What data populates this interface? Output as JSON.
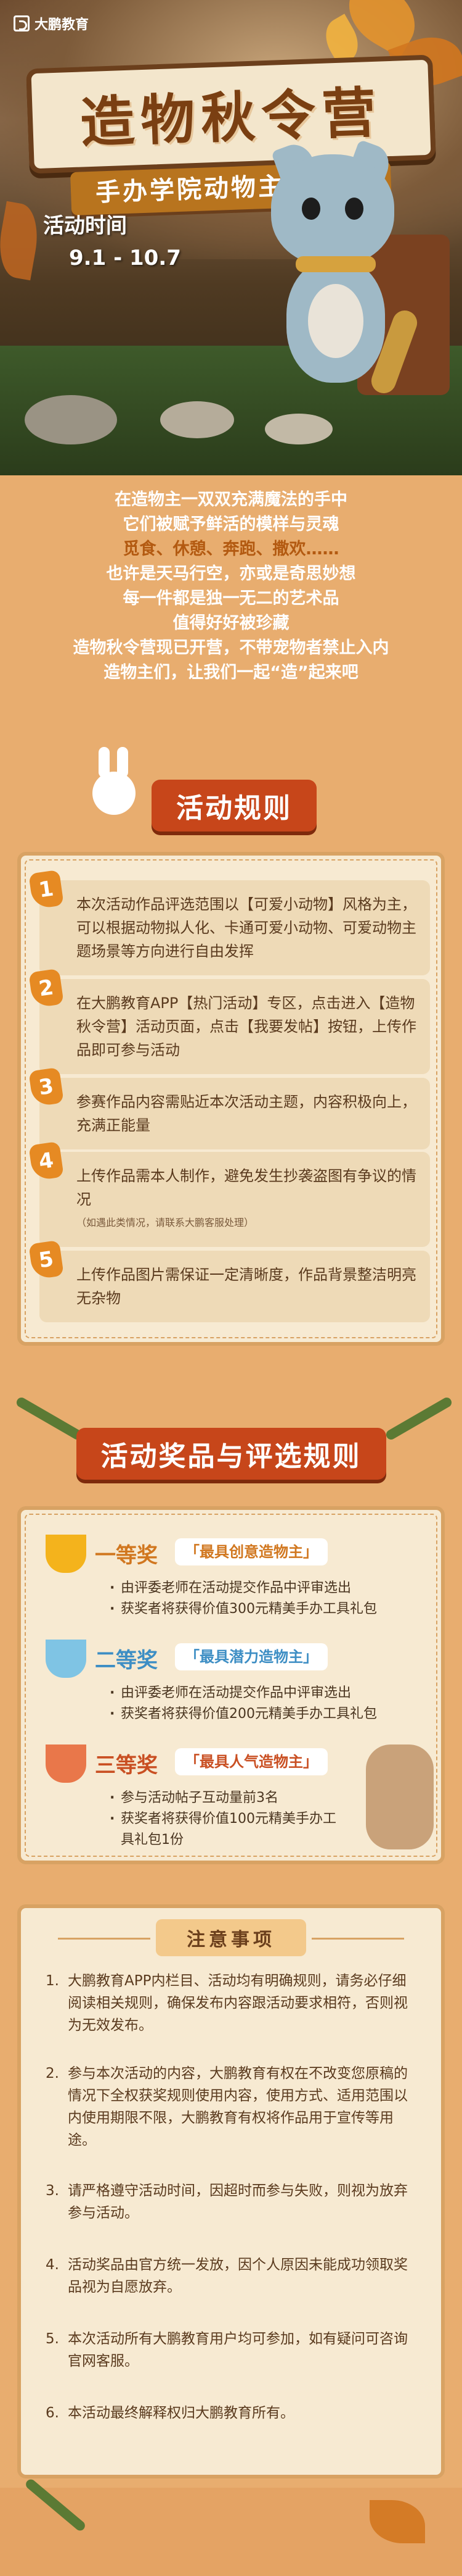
{
  "brand": {
    "logo_text": "大鹏教育"
  },
  "hero": {
    "title": "造物秋令营",
    "subtitle": "手办学院动物主题活动",
    "time_label": "活动时间",
    "time_value": "9.1 - 10.7"
  },
  "intro": {
    "lines": [
      "在造物主一双双充满魔法的手中",
      "它们被赋予鲜活的模样与灵魂",
      "觅食、休憩、奔跑、撒欢……",
      "也许是天马行空，亦或是奇思妙想",
      "每一件都是独一无二的艺术品",
      "值得好好被珍藏",
      "造物秋令营现已开营，不带宠物者禁止入内",
      "造物主们，让我们一起“造”起来吧"
    ]
  },
  "rules": {
    "header": "活动规则",
    "items": [
      {
        "num": "1",
        "text": "本次活动作品评选范围以【可爱小动物】风格为主，可以根据动物拟人化、卡通可爱小动物、可爱动物主题场景等方向进行自由发挥"
      },
      {
        "num": "2",
        "text": "在大鹏教育APP【热门活动】专区，点击进入【造物秋令营】活动页面，点击【我要发帖】按钮，上传作品即可参与活动"
      },
      {
        "num": "3",
        "text": "参赛作品内容需贴近本次活动主题，内容积极向上，充满正能量"
      },
      {
        "num": "4",
        "text": "上传作品需本人制作，避免发生抄袭盗图有争议的情况",
        "note": "（如遇此类情况，请联系大鹏客服处理）"
      },
      {
        "num": "5",
        "text": "上传作品图片需保证一定清晰度，作品背景整洁明亮无杂物"
      }
    ]
  },
  "prizes": {
    "header": "活动奖品与评选规则",
    "items": [
      {
        "rank": "一等奖",
        "tag": "「最具创意造物主」",
        "lines": [
          "由评委老师在活动提交作品中评审选出",
          "获奖者将获得价值300元精美手办工具礼包"
        ]
      },
      {
        "rank": "二等奖",
        "tag": "「最具潜力造物主」",
        "lines": [
          "由评委老师在活动提交作品中评审选出",
          "获奖者将获得价值200元精美手办工具礼包"
        ]
      },
      {
        "rank": "三等奖",
        "tag": "「最具人气造物主」",
        "lines": [
          "参与活动帖子互动量前3名",
          "获奖者将获得价值100元精美手办工具礼包1份"
        ]
      }
    ]
  },
  "notes": {
    "header": "注意事项",
    "items": [
      {
        "n": "1.",
        "text": "大鹏教育APP内栏目、活动均有明确规则，请务必仔细阅读相关规则，确保发布内容跟活动要求相符，否则视为无效发布。"
      },
      {
        "n": "2.",
        "text": "参与本次活动的内容，大鹏教育有权在不改变您原稿的情况下全权获奖规则使用内容，使用方式、适用范围以内使用期限不限，大鹏教育有权将作品用于宣传等用途。"
      },
      {
        "n": "3.",
        "text": "请严格遵守活动时间，因超时而参与失败，则视为放弃参与活动。"
      },
      {
        "n": "4.",
        "text": "活动奖品由官方统一发放，因个人原因未能成功领取奖品视为自愿放弃。"
      },
      {
        "n": "5.",
        "text": "本次活动所有大鹏教育用户均可参加，如有疑问可咨询官网客服。"
      },
      {
        "n": "6.",
        "text": "本活动最终解释权归大鹏教育所有。"
      }
    ]
  },
  "colors": {
    "accent": "#c7461a",
    "gold": "#e68a23",
    "highlight": "#c0321a"
  }
}
